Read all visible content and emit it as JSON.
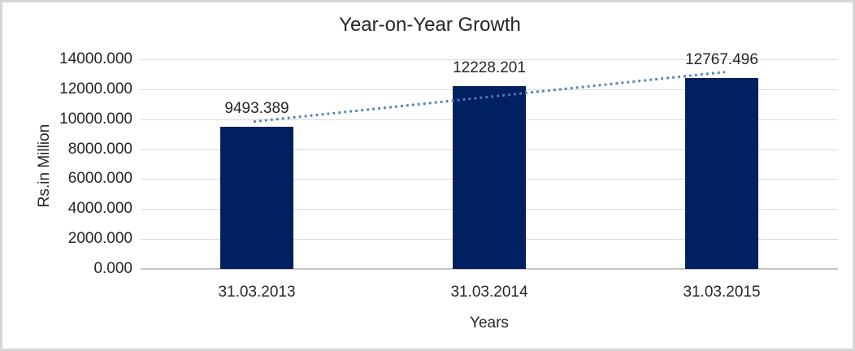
{
  "chart_data": {
    "type": "bar",
    "title": "Year-on-Year Growth",
    "categories": [
      "31.03.2013",
      "31.03.2014",
      "31.03.2015"
    ],
    "values": [
      9493.389,
      12228.201,
      12767.496
    ],
    "data_labels": [
      "9493.389",
      "12228.201",
      "12767.496"
    ],
    "xlabel": "Years",
    "ylabel": "Rs.in Million",
    "ylim": [
      0,
      14000
    ],
    "ytick_step": 2000,
    "ytick_labels": [
      "0.000",
      "2000.000",
      "4000.000",
      "6000.000",
      "8000.000",
      "10000.000",
      "12000.000",
      "14000.000"
    ],
    "grid": true,
    "legend": "none",
    "bar_color": "#002060",
    "trendline": {
      "type": "linear",
      "style": "dotted",
      "color": "#4F81BD"
    },
    "gridline_color": "#D9D9D9",
    "axis_line_color": "#C6C6C6",
    "text_color": "#262626",
    "frame_border_color": "#D7D7D7"
  }
}
